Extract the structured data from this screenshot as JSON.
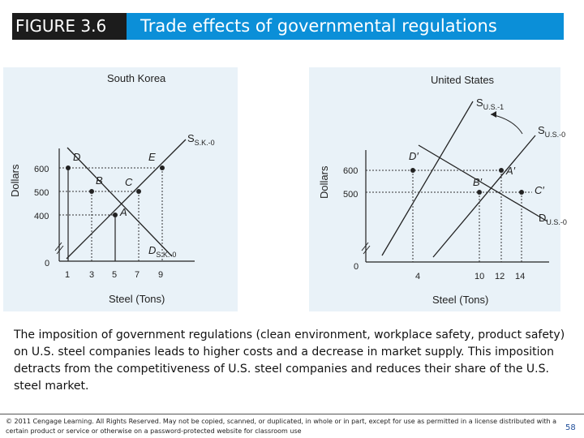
{
  "header": {
    "figure_label": "FIGURE 3.6",
    "title": "Trade effects of governmental regulations"
  },
  "south_korea": {
    "title": "South Korea",
    "ylabel": "Dollars",
    "xlabel": "Steel (Tons)",
    "y_ticks": [
      "600",
      "500",
      "400"
    ],
    "x_ticks": [
      "1",
      "3",
      "5",
      "7",
      "9"
    ],
    "origin": "0",
    "supply_label_main": "S",
    "supply_label_sub": "S.K.-0",
    "demand_label_main": "D",
    "demand_label_sub": "S.K.-0",
    "points": [
      "D",
      "E",
      "B",
      "C",
      "A"
    ]
  },
  "united_states": {
    "title": "United States",
    "ylabel": "Dollars",
    "xlabel": "Steel (Tons)",
    "y_ticks": [
      "600",
      "500"
    ],
    "x_ticks": [
      "4",
      "10",
      "12",
      "14"
    ],
    "origin": "0",
    "supply1_main": "S",
    "supply1_sub": "U.S.-1",
    "supply0_main": "S",
    "supply0_sub": "U.S.-0",
    "demand_main": "D",
    "demand_sub": "U.S.-0",
    "points": [
      "D′",
      "A′",
      "B′",
      "C′"
    ]
  },
  "caption": "The imposition of government regulations (clean environment, workplace safety, product safety) on U.S. steel companies leads to higher costs and a decrease in market supply. This imposition detracts from the competitiveness of U.S. steel companies and reduces their share of the U.S. steel market.",
  "footer": {
    "copyright": "© 2011 Cengage Learning. All Rights Reserved. May not be copied, scanned, or duplicated, in whole or in part, except for use as permitted in a license distributed with a certain product or service or otherwise on a password-protected website for classroom use",
    "page_number": "58"
  }
}
